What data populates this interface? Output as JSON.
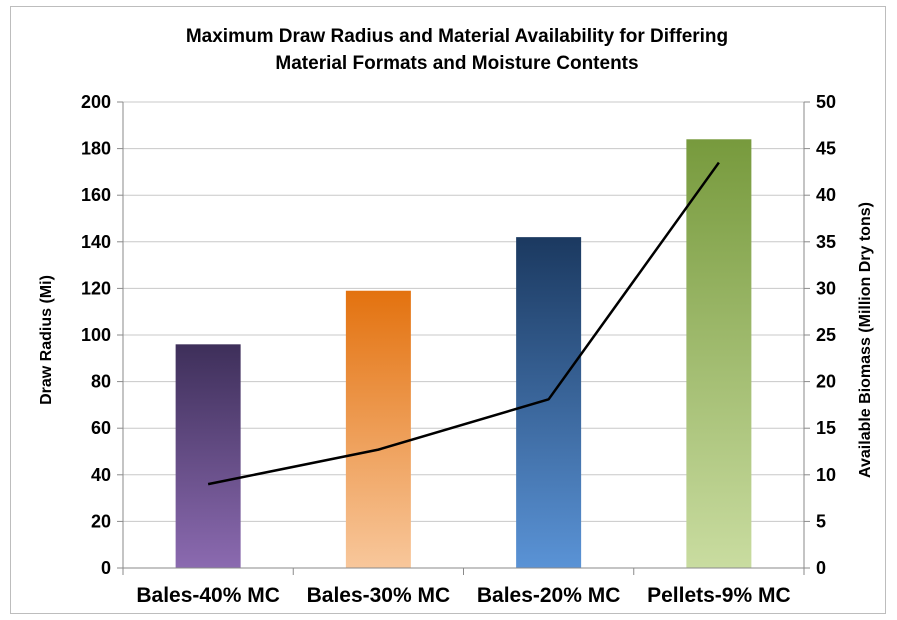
{
  "chart_data": {
    "type": "bar",
    "title": [
      "Maximum Draw Radius and Material Availability for Differing",
      "Material Formats and Moisture Contents"
    ],
    "categories": [
      "Bales-40% MC",
      "Bales-30% MC",
      "Bales-20% MC",
      "Pellets-9% MC"
    ],
    "series": [
      {
        "type": "bar",
        "axis": "left",
        "values": [
          96,
          119,
          142,
          184
        ],
        "colors": [
          {
            "top": "#3e2f5a",
            "bottom": "#8b6ab0"
          },
          {
            "top": "#e3720f",
            "bottom": "#f8c79b"
          },
          {
            "top": "#1b3960",
            "bottom": "#5a93d6"
          },
          {
            "top": "#779a3d",
            "bottom": "#c9dca0"
          }
        ]
      },
      {
        "type": "line",
        "axis": "right",
        "values": [
          9.0,
          12.7,
          18.1,
          43.5
        ],
        "color": "#000000"
      }
    ],
    "ylabel": "Draw Radius (Mi)",
    "y2label": "Available Biomass (Million Dry tons)",
    "ylim": [
      0,
      200
    ],
    "yticks": [
      0,
      20,
      40,
      60,
      80,
      100,
      120,
      140,
      160,
      180,
      200
    ],
    "y2lim": [
      0,
      50
    ],
    "y2ticks": [
      0,
      5,
      10,
      15,
      20,
      25,
      30,
      35,
      40,
      45,
      50
    ],
    "grid": true,
    "grid_color": "#c8c8c8",
    "legend": "none"
  }
}
